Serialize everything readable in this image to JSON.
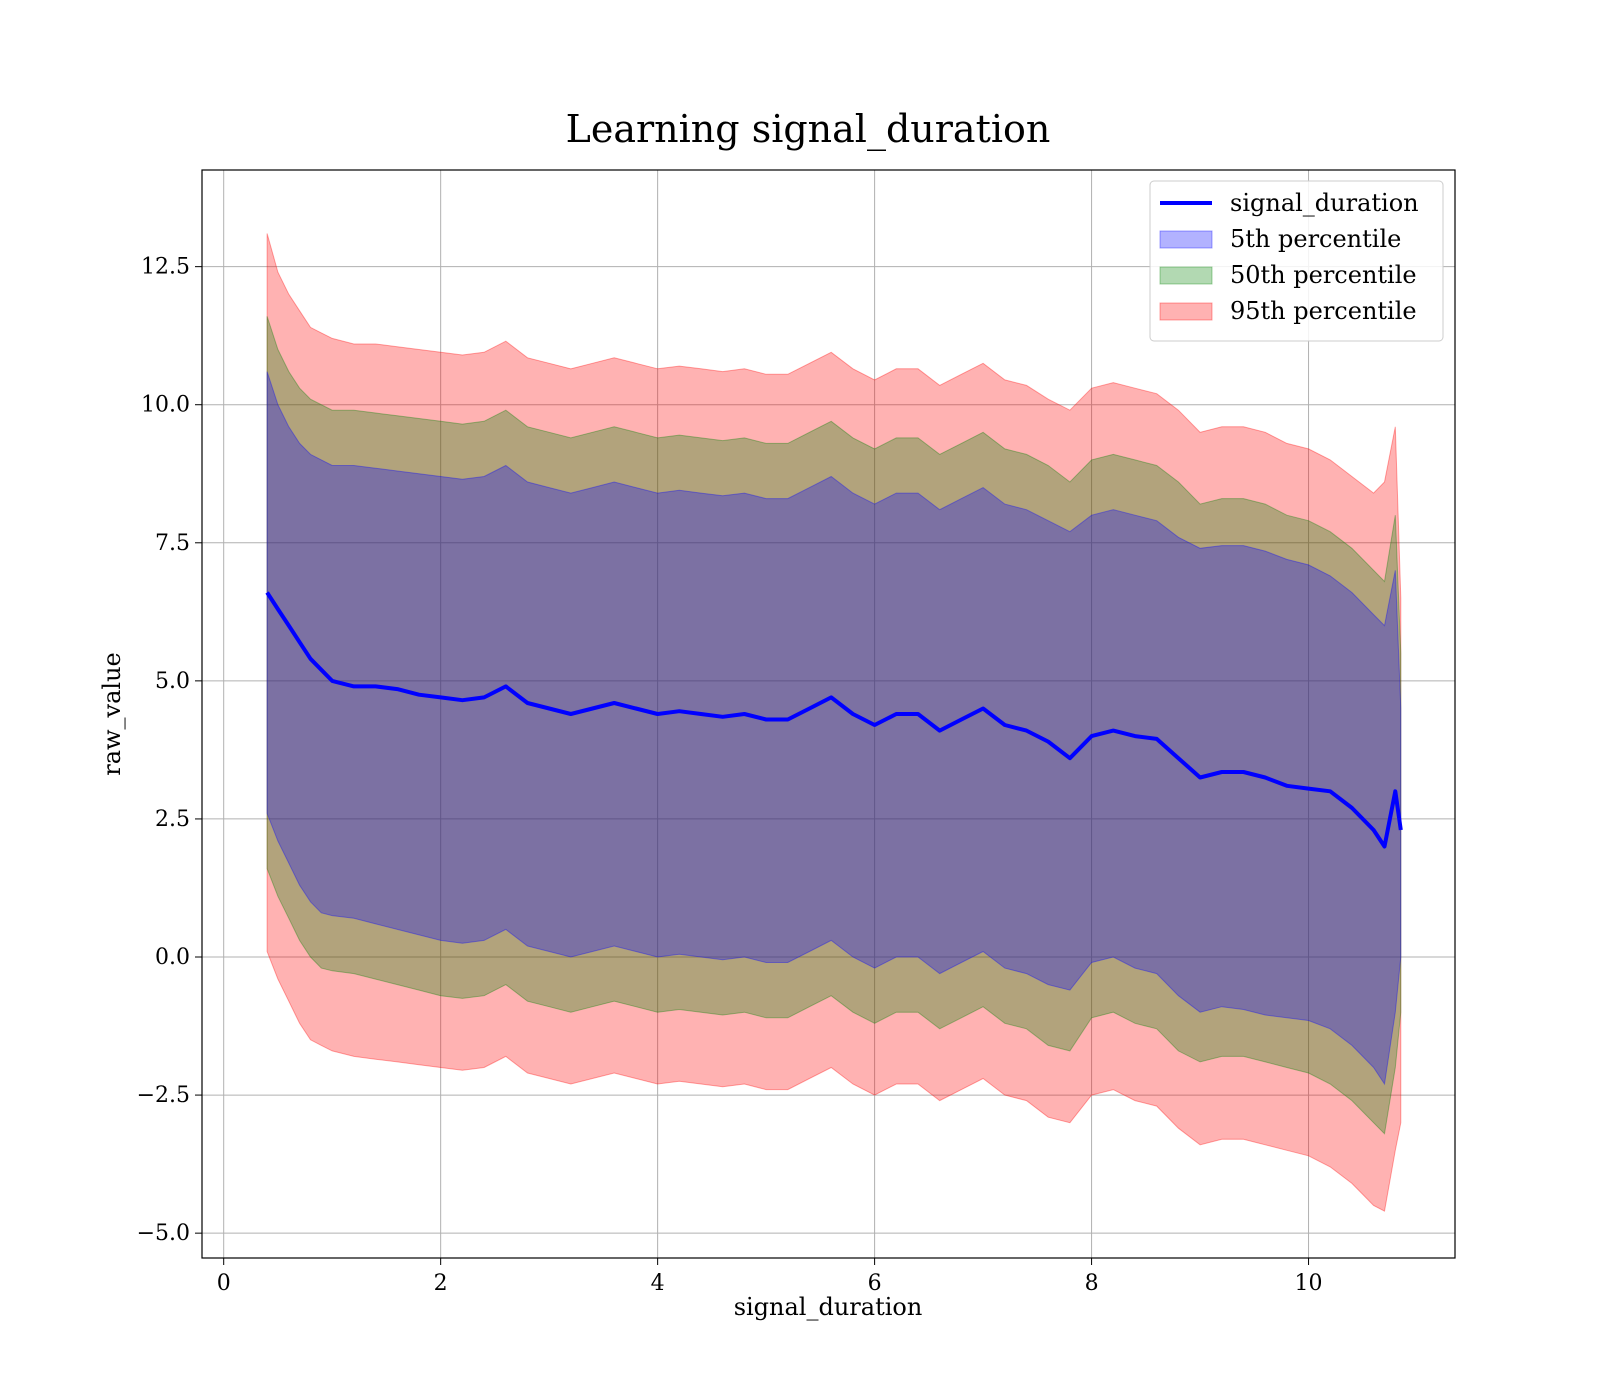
{
  "chart_data": {
    "type": "area",
    "title": "Learning signal_duration",
    "xlabel": "signal_duration",
    "ylabel": "raw_value",
    "xlim": [
      -0.2,
      11.35
    ],
    "ylim": [
      -5.45,
      14.25
    ],
    "x_ticks": [
      0,
      2,
      4,
      6,
      8,
      10
    ],
    "x_tick_labels": [
      "0",
      "2",
      "4",
      "6",
      "8",
      "10"
    ],
    "y_ticks": [
      -5.0,
      -2.5,
      0.0,
      2.5,
      5.0,
      7.5,
      10.0,
      12.5
    ],
    "y_tick_labels": [
      "−5.0",
      "−2.5",
      "0.0",
      "2.5",
      "5.0",
      "7.5",
      "10.0",
      "12.5"
    ],
    "grid": true,
    "legend_position": "top-right",
    "x": [
      0.4,
      0.5,
      0.6,
      0.7,
      0.8,
      0.9,
      1.0,
      1.2,
      1.4,
      1.6,
      1.8,
      2.0,
      2.2,
      2.4,
      2.6,
      2.8,
      3.0,
      3.2,
      3.4,
      3.6,
      3.8,
      4.0,
      4.2,
      4.4,
      4.6,
      4.8,
      5.0,
      5.2,
      5.4,
      5.6,
      5.8,
      6.0,
      6.2,
      6.4,
      6.6,
      6.8,
      7.0,
      7.2,
      7.4,
      7.6,
      7.8,
      8.0,
      8.2,
      8.4,
      8.6,
      8.8,
      9.0,
      9.2,
      9.4,
      9.6,
      9.8,
      10.0,
      10.2,
      10.4,
      10.6,
      10.7,
      10.8,
      10.85
    ],
    "series": [
      {
        "name": "signal_duration",
        "kind": "line",
        "color": "#0000ff",
        "values": [
          6.6,
          6.3,
          6.0,
          5.7,
          5.4,
          5.2,
          5.0,
          4.9,
          4.9,
          4.85,
          4.75,
          4.7,
          4.65,
          4.7,
          4.9,
          4.6,
          4.5,
          4.4,
          4.5,
          4.6,
          4.5,
          4.4,
          4.45,
          4.4,
          4.35,
          4.4,
          4.3,
          4.3,
          4.5,
          4.7,
          4.4,
          4.2,
          4.4,
          4.4,
          4.1,
          4.3,
          4.5,
          4.2,
          4.1,
          3.9,
          3.6,
          4.0,
          4.1,
          4.0,
          3.95,
          3.6,
          3.25,
          3.35,
          3.35,
          3.25,
          3.1,
          3.05,
          3.0,
          2.7,
          2.3,
          2.0,
          3.0,
          2.3
        ]
      },
      {
        "name": "5th percentile",
        "kind": "band",
        "color": "#0000ff",
        "upper": [
          10.6,
          10.0,
          9.6,
          9.3,
          9.1,
          9.0,
          8.9,
          8.9,
          8.85,
          8.8,
          8.75,
          8.7,
          8.65,
          8.7,
          8.9,
          8.6,
          8.5,
          8.4,
          8.5,
          8.6,
          8.5,
          8.4,
          8.45,
          8.4,
          8.35,
          8.4,
          8.3,
          8.3,
          8.5,
          8.7,
          8.4,
          8.2,
          8.4,
          8.4,
          8.1,
          8.3,
          8.5,
          8.2,
          8.1,
          7.9,
          7.7,
          8.0,
          8.1,
          8.0,
          7.9,
          7.6,
          7.4,
          7.45,
          7.45,
          7.35,
          7.2,
          7.1,
          6.9,
          6.6,
          6.2,
          6.0,
          7.0,
          4.5
        ],
        "lower": [
          2.6,
          2.1,
          1.7,
          1.3,
          1.0,
          0.8,
          0.75,
          0.7,
          0.6,
          0.5,
          0.4,
          0.3,
          0.25,
          0.3,
          0.5,
          0.2,
          0.1,
          0.0,
          0.1,
          0.2,
          0.1,
          0.0,
          0.05,
          0.0,
          -0.05,
          0.0,
          -0.1,
          -0.1,
          0.1,
          0.3,
          0.0,
          -0.2,
          0.0,
          0.0,
          -0.3,
          -0.1,
          0.1,
          -0.2,
          -0.3,
          -0.5,
          -0.6,
          -0.1,
          0.0,
          -0.2,
          -0.3,
          -0.7,
          -1.0,
          -0.9,
          -0.95,
          -1.05,
          -1.1,
          -1.15,
          -1.3,
          -1.6,
          -2.0,
          -2.3,
          -1.0,
          0.0
        ]
      },
      {
        "name": "50th percentile",
        "kind": "band",
        "color": "#008000",
        "upper": [
          11.6,
          11.0,
          10.6,
          10.3,
          10.1,
          10.0,
          9.9,
          9.9,
          9.85,
          9.8,
          9.75,
          9.7,
          9.65,
          9.7,
          9.9,
          9.6,
          9.5,
          9.4,
          9.5,
          9.6,
          9.5,
          9.4,
          9.45,
          9.4,
          9.35,
          9.4,
          9.3,
          9.3,
          9.5,
          9.7,
          9.4,
          9.2,
          9.4,
          9.4,
          9.1,
          9.3,
          9.5,
          9.2,
          9.1,
          8.9,
          8.6,
          9.0,
          9.1,
          9.0,
          8.9,
          8.6,
          8.2,
          8.3,
          8.3,
          8.2,
          8.0,
          7.9,
          7.7,
          7.4,
          7.0,
          6.8,
          8.0,
          5.5
        ],
        "lower": [
          1.6,
          1.1,
          0.7,
          0.3,
          0.0,
          -0.2,
          -0.25,
          -0.3,
          -0.4,
          -0.5,
          -0.6,
          -0.7,
          -0.75,
          -0.7,
          -0.5,
          -0.8,
          -0.9,
          -1.0,
          -0.9,
          -0.8,
          -0.9,
          -1.0,
          -0.95,
          -1.0,
          -1.05,
          -1.0,
          -1.1,
          -1.1,
          -0.9,
          -0.7,
          -1.0,
          -1.2,
          -1.0,
          -1.0,
          -1.3,
          -1.1,
          -0.9,
          -1.2,
          -1.3,
          -1.6,
          -1.7,
          -1.1,
          -1.0,
          -1.2,
          -1.3,
          -1.7,
          -1.9,
          -1.8,
          -1.8,
          -1.9,
          -2.0,
          -2.1,
          -2.3,
          -2.6,
          -3.0,
          -3.2,
          -2.0,
          -1.0
        ]
      },
      {
        "name": "95th percentile",
        "kind": "band",
        "color": "#ff0000",
        "upper": [
          13.1,
          12.4,
          12.0,
          11.7,
          11.4,
          11.3,
          11.2,
          11.1,
          11.1,
          11.05,
          11.0,
          10.95,
          10.9,
          10.95,
          11.15,
          10.85,
          10.75,
          10.65,
          10.75,
          10.85,
          10.75,
          10.65,
          10.7,
          10.65,
          10.6,
          10.65,
          10.55,
          10.55,
          10.75,
          10.95,
          10.65,
          10.45,
          10.65,
          10.65,
          10.35,
          10.55,
          10.75,
          10.45,
          10.35,
          10.1,
          9.9,
          10.3,
          10.4,
          10.3,
          10.2,
          9.9,
          9.5,
          9.6,
          9.6,
          9.5,
          9.3,
          9.2,
          9.0,
          8.7,
          8.4,
          8.6,
          9.6,
          6.5
        ],
        "lower": [
          0.1,
          -0.4,
          -0.8,
          -1.2,
          -1.5,
          -1.6,
          -1.7,
          -1.8,
          -1.85,
          -1.9,
          -1.95,
          -2.0,
          -2.05,
          -2.0,
          -1.8,
          -2.1,
          -2.2,
          -2.3,
          -2.2,
          -2.1,
          -2.2,
          -2.3,
          -2.25,
          -2.3,
          -2.35,
          -2.3,
          -2.4,
          -2.4,
          -2.2,
          -2.0,
          -2.3,
          -2.5,
          -2.3,
          -2.3,
          -2.6,
          -2.4,
          -2.2,
          -2.5,
          -2.6,
          -2.9,
          -3.0,
          -2.5,
          -2.4,
          -2.6,
          -2.7,
          -3.1,
          -3.4,
          -3.3,
          -3.3,
          -3.4,
          -3.5,
          -3.6,
          -3.8,
          -4.1,
          -4.5,
          -4.6,
          -3.5,
          -3.0
        ]
      }
    ]
  }
}
